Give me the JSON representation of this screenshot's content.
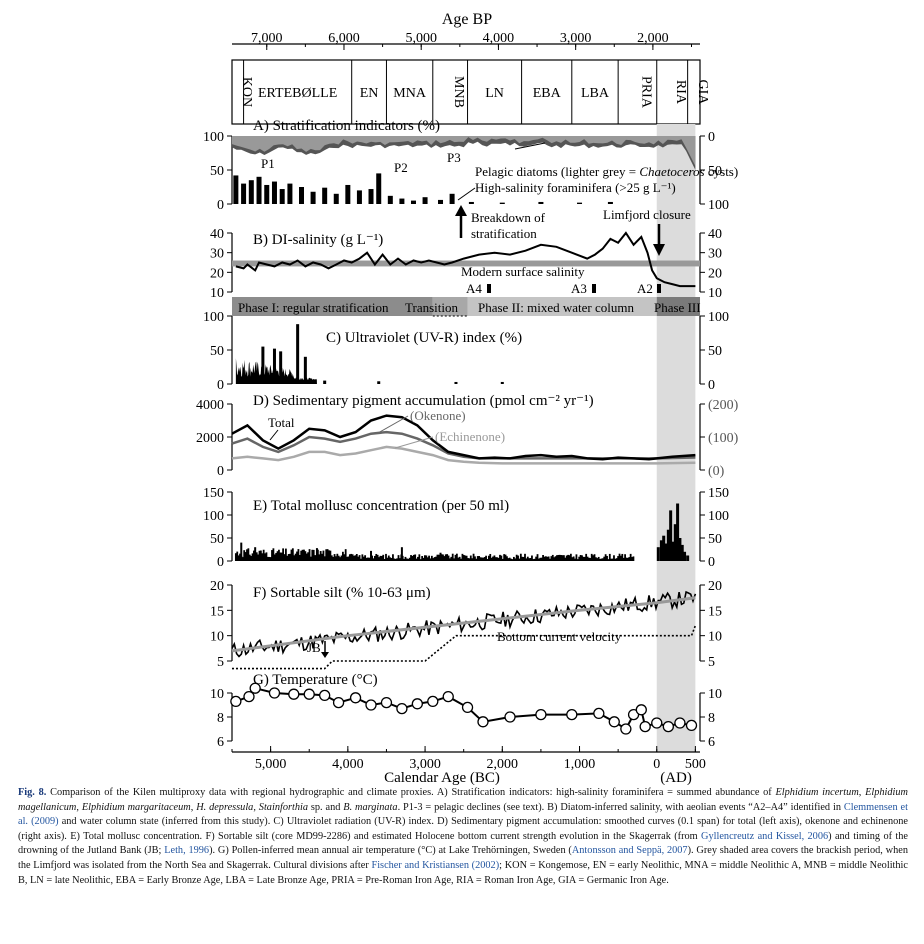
{
  "top_axis": {
    "title": "Age BP",
    "ticks": [
      {
        "v": 7000,
        "label": "7,000"
      },
      {
        "v": 6000,
        "label": "6,000"
      },
      {
        "v": 5000,
        "label": "5,000"
      },
      {
        "v": 4000,
        "label": "4,000"
      },
      {
        "v": 3000,
        "label": "3,000"
      },
      {
        "v": 2000,
        "label": "2,000"
      }
    ]
  },
  "bottom_axis": {
    "title": "Calendar Age (BC)",
    "sub": "(AD)",
    "ticks": [
      {
        "v": -5000,
        "label": "5,000"
      },
      {
        "v": -4000,
        "label": "4,000"
      },
      {
        "v": -3000,
        "label": "3,000"
      },
      {
        "v": -2000,
        "label": "2,000"
      },
      {
        "v": -1000,
        "label": "1,000"
      },
      {
        "v": 0,
        "label": "0"
      },
      {
        "v": 500,
        "label": "500"
      }
    ]
  },
  "periods": [
    {
      "label": "KON",
      "from": -5500,
      "to": -5350,
      "vertical": true
    },
    {
      "label": "ERTEBØLLE",
      "from": -5350,
      "to": -3950,
      "vertical": false
    },
    {
      "label": "EN",
      "from": -3950,
      "to": -3500,
      "vertical": false
    },
    {
      "label": "MNA",
      "from": -3500,
      "to": -2900,
      "vertical": false
    },
    {
      "label": "MNB",
      "from": -2900,
      "to": -2450,
      "vertical": true
    },
    {
      "label": "LN",
      "from": -2450,
      "to": -1750,
      "vertical": false
    },
    {
      "label": "EBA",
      "from": -1750,
      "to": -1100,
      "vertical": false
    },
    {
      "label": "LBA",
      "from": -1100,
      "to": -500,
      "vertical": false
    },
    {
      "label": "PRIA",
      "from": -500,
      "to": 0,
      "vertical": true
    },
    {
      "label": "RIA",
      "from": 0,
      "to": 400,
      "vertical": true
    },
    {
      "label": "GIA",
      "from": 400,
      "to": 560,
      "vertical": true
    }
  ],
  "shaded": {
    "from": 0,
    "to": 500,
    "color": "#dcdcdc"
  },
  "panels": {
    "A": {
      "title": "A) Stratification indicators (%)",
      "left_ticks": [
        "100",
        "50",
        "0"
      ],
      "right_ticks": [
        "0",
        "50",
        "100"
      ],
      "labels": {
        "p1": "P1",
        "p2": "P2",
        "p3": "P3",
        "diatoms_pre": "Pelagic diatoms (lighter grey = ",
        "diatoms_it": "Chaetoceros",
        "diatoms_post": " cysts)",
        "foram": "High-salinity foraminifera (>25 g L⁻¹)"
      }
    },
    "B": {
      "title": "B) DI-salinity (g L⁻¹)",
      "left_ticks": [
        "40",
        "30",
        "20",
        "10"
      ],
      "right_ticks": [
        "40",
        "30",
        "20",
        "10"
      ],
      "labels": {
        "modern": "Modern surface salinity",
        "a4": "A4",
        "a3": "A3",
        "a2": "A2",
        "breakdown1": "Breakdown of",
        "breakdown2": "stratification",
        "limfjord": "Limfjord closure"
      }
    },
    "phases": {
      "p1": "Phase I: regular stratification",
      "transition": "Transition",
      "p2": "Phase II: mixed water column",
      "p3": "Phase III"
    },
    "C": {
      "title": "C) Ultraviolet (UV-R) index (%)",
      "left_ticks": [
        "100",
        "50",
        "0"
      ],
      "right_ticks": [
        "100",
        "50",
        "0"
      ]
    },
    "D": {
      "title": "D) Sedimentary pigment accumulation (pmol cm⁻² yr⁻¹)",
      "left_ticks": [
        "4000",
        "2000",
        "0"
      ],
      "right_ticks": [
        "(200)",
        "(100)",
        "(0)"
      ],
      "labels": {
        "total": "Total",
        "okenone": "(Okenone)",
        "echinenone": "(Echinenone)"
      }
    },
    "E": {
      "title": "E) Total mollusc concentration (per 50 ml)",
      "left_ticks": [
        "150",
        "100",
        "50",
        "0"
      ],
      "right_ticks": [
        "150",
        "100",
        "50",
        "0"
      ]
    },
    "F": {
      "title": "F) Sortable silt (% 10-63 μm)",
      "left_ticks": [
        "20",
        "15",
        "10",
        "5"
      ],
      "right_ticks": [
        "20",
        "15",
        "10",
        "5"
      ],
      "labels": {
        "velocity": "Bottom current velocity",
        "jb": "JB"
      }
    },
    "G": {
      "title": "G) Temperature (°C)",
      "left_ticks": [
        "10",
        "8",
        "6"
      ],
      "right_ticks": [
        "10",
        "8",
        "6"
      ]
    }
  },
  "chart_data": {
    "type": "line",
    "x_unit": "calendar year (negative = BC)",
    "temperature": {
      "x": [
        -5450,
        -5280,
        -5200,
        -4950,
        -4700,
        -4500,
        -4300,
        -4120,
        -3900,
        -3700,
        -3500,
        -3300,
        -3100,
        -2900,
        -2700,
        -2450,
        -2250,
        -1900,
        -1500,
        -1100,
        -750,
        -550,
        -400,
        -300,
        -200,
        -150,
        0,
        150,
        300,
        450
      ],
      "y": [
        9.3,
        9.7,
        10.4,
        10.0,
        9.9,
        9.9,
        9.8,
        9.2,
        9.6,
        9.0,
        9.2,
        8.7,
        9.1,
        9.3,
        9.7,
        8.8,
        7.6,
        8.0,
        8.2,
        8.2,
        8.3,
        7.6,
        7.0,
        8.2,
        8.6,
        7.2,
        7.5,
        7.2,
        7.5,
        7.3
      ]
    },
    "salinity": {
      "x": [
        -5450,
        -5350,
        -5300,
        -5200,
        -5150,
        -5050,
        -4950,
        -4850,
        -4750,
        -4650,
        -4550,
        -4450,
        -4350,
        -4250,
        -4150,
        -4050,
        -3950,
        -3850,
        -3750,
        -3650,
        -3550,
        -3450,
        -3350,
        -3250,
        -3150,
        -3050,
        -2950,
        -2850,
        -2750,
        -2650,
        -2500,
        -2300,
        -2100,
        -1900,
        -1700,
        -1500,
        -1300,
        -1100,
        -900,
        -800,
        -700,
        -600,
        -500,
        -400,
        -300,
        -200,
        -120,
        -60,
        0,
        100,
        200,
        300,
        400,
        500
      ],
      "y": [
        23,
        22,
        24,
        21,
        25,
        24,
        23,
        25,
        24,
        26,
        23,
        25,
        24,
        22,
        24,
        26,
        25,
        27,
        30,
        24,
        29,
        24,
        27,
        24,
        26,
        25,
        26,
        25,
        24,
        25,
        27,
        29,
        30,
        29,
        31,
        34,
        33,
        30,
        27,
        29,
        32,
        37,
        35,
        40,
        34,
        38,
        30,
        21,
        17,
        15,
        14,
        13,
        13,
        13
      ]
    },
    "silt_trend": {
      "x": [
        -5500,
        -4000,
        -2500,
        -1000,
        0,
        500
      ],
      "y": [
        7,
        10,
        12.5,
        15,
        16.5,
        17.5
      ]
    },
    "bottom_velocity": {
      "x": [
        -5500,
        -4300,
        -4200,
        -3000,
        -2600,
        0,
        450,
        500
      ],
      "y": [
        3.5,
        3.5,
        5,
        5,
        10,
        10,
        10,
        12
      ]
    },
    "pigment_total": {
      "x": [
        -5500,
        -5300,
        -5100,
        -4900,
        -4700,
        -4500,
        -4300,
        -4100,
        -3900,
        -3700,
        -3500,
        -3300,
        -3100,
        -2900,
        -2700,
        -2500,
        -2300,
        -2100,
        -1900,
        -1700,
        -1500,
        -1300,
        -1100,
        -900,
        -700,
        -500,
        -300,
        -100,
        0,
        200,
        500
      ],
      "y": [
        2200,
        2700,
        1800,
        1300,
        1800,
        2500,
        2400,
        2000,
        2300,
        3000,
        3300,
        3200,
        2700,
        1800,
        1100,
        900,
        700,
        750,
        700,
        850,
        900,
        800,
        850,
        700,
        650,
        750,
        700,
        650,
        700,
        800,
        900
      ]
    },
    "okenone": {
      "x": [
        -5500,
        -5300,
        -5100,
        -4900,
        -4700,
        -4500,
        -4300,
        -4100,
        -3900,
        -3700,
        -3500,
        -3300,
        -3100,
        -2900,
        -2700,
        -2500,
        -2300,
        -2000,
        -1500,
        -1000,
        -500,
        0,
        500
      ],
      "y": [
        80,
        95,
        70,
        55,
        75,
        100,
        95,
        85,
        95,
        110,
        115,
        110,
        95,
        75,
        50,
        40,
        35,
        35,
        35,
        35,
        35,
        35,
        38
      ]
    },
    "echinenone": {
      "x": [
        -5500,
        -5300,
        -5100,
        -4900,
        -4700,
        -4500,
        -4300,
        -4100,
        -3900,
        -3700,
        -3500,
        -3300,
        -3100,
        -2900,
        -2700,
        -2500,
        -2300,
        -2000,
        -1500,
        -1000,
        -500,
        0,
        500
      ],
      "y": [
        35,
        40,
        35,
        30,
        40,
        55,
        55,
        45,
        50,
        60,
        70,
        65,
        55,
        45,
        30,
        25,
        22,
        20,
        20,
        20,
        20,
        20,
        22
      ]
    }
  }
}
